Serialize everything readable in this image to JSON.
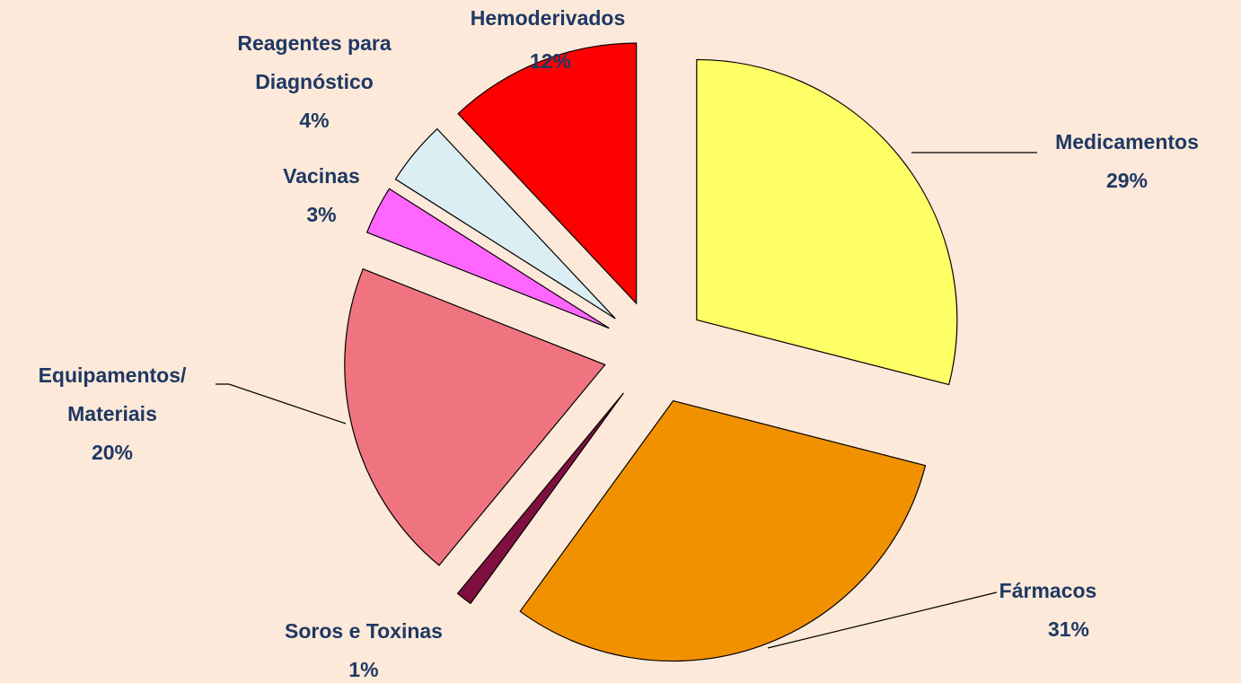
{
  "chart_data": {
    "type": "pie",
    "categories": [
      "Medicamentos",
      "Fármacos",
      "Soros e Toxinas",
      "Equipamentos/\nMateriais",
      "Vacinas",
      "Reagentes para\nDiagnóstico",
      "Hemoderivados"
    ],
    "values": [
      29,
      31,
      1,
      20,
      3,
      4,
      12
    ],
    "value_labels": [
      "29%",
      "31%",
      "1%",
      "20%",
      "3%",
      "4%",
      "12%"
    ],
    "colors": [
      "#ffff66",
      "#f29100",
      "#7f0f3e",
      "#f07480",
      "#ff66ff",
      "#dbeef4",
      "#ff0000"
    ]
  }
}
